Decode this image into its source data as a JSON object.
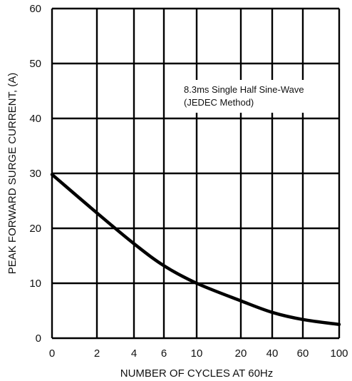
{
  "chart_data": {
    "type": "line",
    "title": "",
    "xlabel": "NUMBER OF CYCLES AT 60Hz",
    "ylabel": "PEAK FORWARD SURGE CURRENT, (A)",
    "x_scale": "log",
    "x_ticks": [
      "0",
      "2",
      "4",
      "6",
      "10",
      "20",
      "40",
      "60",
      "100"
    ],
    "y_ticks": [
      "0",
      "10",
      "20",
      "30",
      "40",
      "50",
      "60"
    ],
    "ylim": [
      0,
      60
    ],
    "grid": true,
    "annotation": {
      "line1": "8.3ms Single Half Sine-Wave",
      "line2": "(JEDEC Method)"
    },
    "series": [
      {
        "tick_pos": [
          0,
          1,
          2,
          3,
          4,
          5,
          6,
          7,
          8
        ],
        "values": [
          29.8,
          22.8,
          17.2,
          13.2,
          10.0,
          6.8,
          4.7,
          3.4,
          2.5
        ],
        "color": "#000000"
      }
    ]
  }
}
